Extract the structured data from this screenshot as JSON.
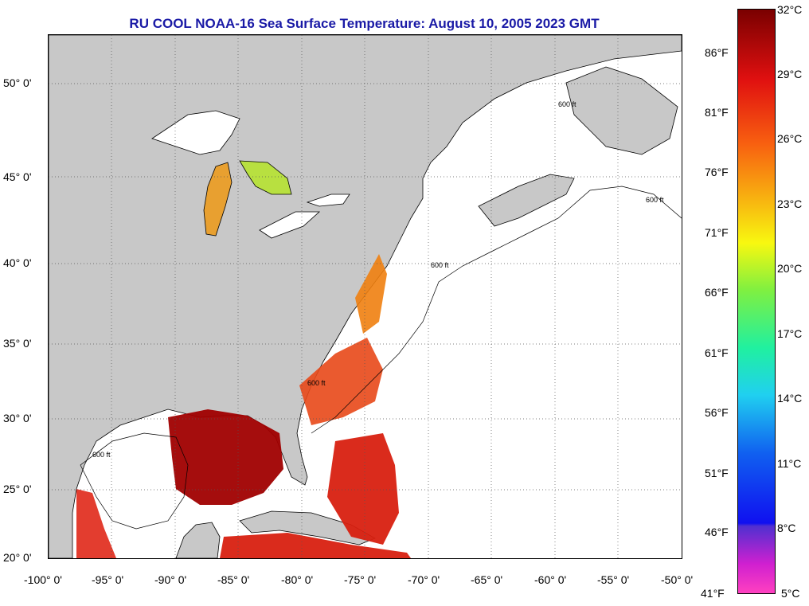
{
  "title": "RU COOL  NOAA-16  Sea Surface Temperature:  August 10, 2005 2023 GMT",
  "lat_labels": [
    "50° 0'",
    "45° 0'",
    "40° 0'",
    "35° 0'",
    "30° 0'",
    "25° 0'",
    "20° 0'"
  ],
  "lon_labels": [
    "-100° 0'",
    "-95° 0'",
    "-90° 0'",
    "-85° 0'",
    "-80° 0'",
    "-75° 0'",
    "-70° 0'",
    "-65° 0'",
    "-60° 0'",
    "-55° 0'",
    "-50° 0'"
  ],
  "colorbar": {
    "fahrenheit": [
      "86°F",
      "81°F",
      "76°F",
      "71°F",
      "66°F",
      "61°F",
      "56°F",
      "51°F",
      "46°F",
      "41°F"
    ],
    "celsius": [
      "32°C",
      "29°C",
      "26°C",
      "23°C",
      "20°C",
      "17°C",
      "14°C",
      "11°C",
      "8°C",
      "5°C"
    ]
  },
  "contour_label": "600 ft",
  "colors": {
    "land": "#c8c8c8",
    "title": "#1a1aa6",
    "hot": "#a00000",
    "warm": "#e83018",
    "mid": "#f08010"
  }
}
